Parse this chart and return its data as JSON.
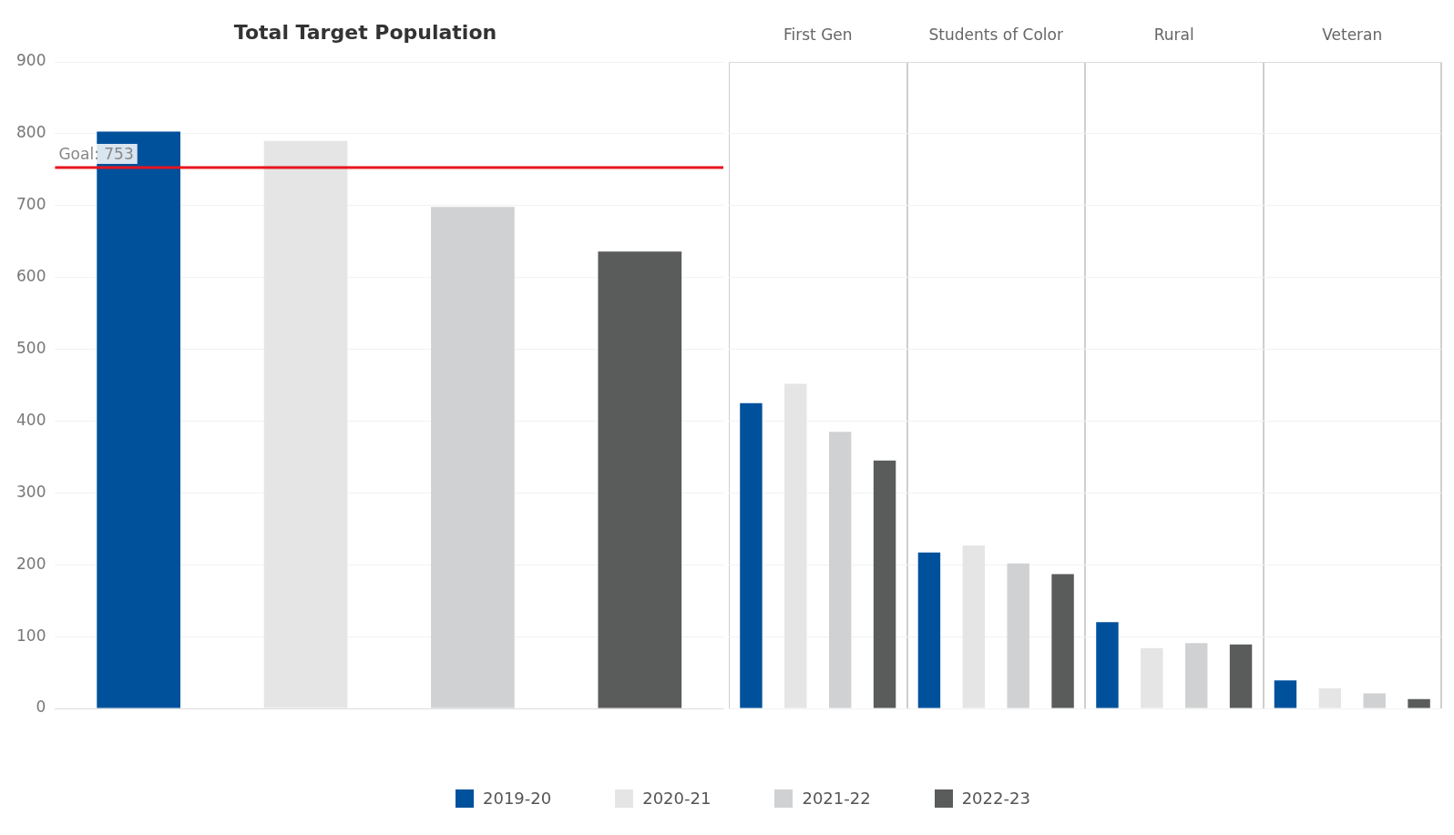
{
  "chart_data": [
    {
      "type": "bar",
      "title": "Total Target Population",
      "categories": [
        null
      ],
      "series": [
        {
          "color": "#00519c",
          "values": [
            803
          ]
        },
        {
          "color": "#e5e5e5",
          "values": [
            790
          ]
        },
        {
          "color": "#d0d1d3",
          "values": [
            698
          ]
        },
        {
          "color": "#5a5b5b",
          "values": [
            636
          ]
        }
      ],
      "ylim": [
        0,
        900
      ],
      "yticks": [
        0,
        100,
        200,
        300,
        400,
        500,
        600,
        700,
        800,
        900
      ],
      "grid": "y",
      "ref_lines": [
        {
          "axis": "y",
          "value": 753,
          "label": "Goal: 753",
          "color": "#e8141e"
        }
      ]
    },
    {
      "type": "bar",
      "categories": [
        "First Gen",
        "Students of Color",
        "Rural",
        "Veteran"
      ],
      "series": [
        {
          "name": "2019-20",
          "color": "#00519c",
          "values": [
            425,
            217,
            120,
            39
          ]
        },
        {
          "name": "2020-21",
          "color": "#e5e5e5",
          "values": [
            452,
            227,
            84,
            28
          ]
        },
        {
          "name": "2021-22",
          "color": "#d0d1d3",
          "values": [
            385,
            202,
            91,
            21
          ]
        },
        {
          "name": "2022-23",
          "color": "#5a5b5b",
          "values": [
            345,
            187,
            89,
            13
          ]
        }
      ],
      "ylim": [
        0,
        900
      ],
      "yticks": [
        0,
        100,
        200,
        300,
        400,
        500,
        600,
        700,
        800,
        900
      ],
      "grid": true,
      "tick_labels": "x",
      "legend": "bottom"
    }
  ]
}
